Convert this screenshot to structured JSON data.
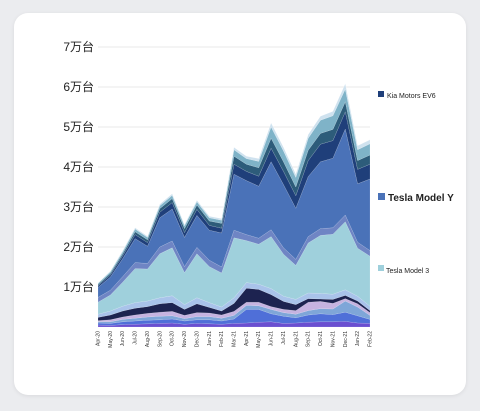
{
  "chart_data": {
    "type": "area",
    "stacked": true,
    "ylim": [
      0,
      70000
    ],
    "y_ticks": [
      {
        "value": 10000,
        "label": "1万台"
      },
      {
        "value": 20000,
        "label": "2万台"
      },
      {
        "value": 30000,
        "label": "3万台"
      },
      {
        "value": 40000,
        "label": "4万台"
      },
      {
        "value": 50000,
        "label": "5万台"
      },
      {
        "value": 60000,
        "label": "6万台"
      },
      {
        "value": 70000,
        "label": "7万台"
      }
    ],
    "categories": [
      "Apr-20",
      "May-20",
      "Jun-20",
      "Jul-20",
      "Aug-20",
      "Sep-20",
      "Oct-20",
      "Nov-20",
      "Dec-20",
      "Jan-21",
      "Feb-21",
      "Mar-21",
      "Apr-21",
      "May-21",
      "Jun-21",
      "Jul-21",
      "Aug-21",
      "Sep-21",
      "Oct-21",
      "Nov-21",
      "Dec-21",
      "Jan-22",
      "Feb-22"
    ],
    "x_tick_labels": [
      "Apr-20",
      "May-20",
      "Jun-20",
      "Jul-20",
      "Aug-20",
      "Sep-20",
      "Oct-20",
      "Nov-20",
      "Dec-20",
      "Jan-21",
      "Feb-21",
      "Mar-21",
      "Apr-21",
      "May-21",
      "Jun-21",
      "Jul-21",
      "Aug-21",
      "Sep-21",
      "Oct-21",
      "Nov-21",
      "Dec-21",
      "Jan-22",
      "Feb-22"
    ],
    "legend": [
      {
        "label": "Kia Motors EV6",
        "color": "#1f3f7a",
        "size": "small"
      },
      {
        "label": "Tesla Model Y",
        "color": "#4a72b8",
        "size": "big"
      },
      {
        "label": "Tesla Model 3",
        "color": "#9fd0dc",
        "size": "small"
      }
    ],
    "legend_position": "right",
    "series": [
      {
        "color": "#6a4fd0",
        "values": [
          500,
          400,
          600,
          700,
          800,
          900,
          1000,
          700,
          900,
          800,
          700,
          900,
          1000,
          1200,
          1300,
          900,
          1000,
          1200,
          1300,
          1300,
          1400,
          1000,
          900
        ]
      },
      {
        "color": "#4f6fd8",
        "values": [
          500,
          500,
          700,
          800,
          900,
          900,
          1000,
          800,
          900,
          1000,
          800,
          1100,
          3400,
          3200,
          2000,
          1800,
          1300,
          1800,
          2000,
          1800,
          2300,
          1800,
          1000
        ]
      },
      {
        "color": "#7fa6d8",
        "values": [
          300,
          400,
          600,
          700,
          800,
          900,
          800,
          600,
          800,
          800,
          700,
          900,
          1000,
          900,
          1100,
          900,
          900,
          1100,
          1300,
          1400,
          2800,
          2200,
          1000
        ]
      },
      {
        "color": "#c6b3e0",
        "values": [
          300,
          500,
          600,
          800,
          900,
          1000,
          1100,
          800,
          1000,
          900,
          800,
          1000,
          800,
          900,
          700,
          800,
          900,
          2100,
          1800,
          1400,
          600,
          800,
          700
        ]
      },
      {
        "color": "#1d2350",
        "values": [
          800,
          1200,
          1500,
          1700,
          1700,
          2100,
          2200,
          1500,
          2200,
          1400,
          1000,
          2000,
          3500,
          3200,
          3000,
          2000,
          1500,
          900,
          600,
          1000,
          800,
          700,
          500
        ]
      },
      {
        "color": "#a9c3ea",
        "values": [
          800,
          1000,
          1200,
          1400,
          1400,
          1500,
          1700,
          1200,
          1500,
          1200,
          1000,
          1400,
          1400,
          1300,
          1500,
          1300,
          1300,
          1400,
          1400,
          1300,
          1400,
          1200,
          1100
        ]
      },
      {
        "color": "#9fd0dc",
        "values": [
          3000,
          4000,
          6000,
          8500,
          8000,
          11000,
          12000,
          8000,
          11000,
          9000,
          8500,
          15000,
          10500,
          10000,
          13000,
          10500,
          8500,
          12500,
          14500,
          15000,
          17000,
          12000,
          12500
        ]
      },
      {
        "color": "#6f85c4",
        "values": [
          1200,
          1200,
          1400,
          1500,
          1400,
          1700,
          1700,
          1500,
          1600,
          1600,
          1500,
          1900,
          1500,
          1500,
          1700,
          1600,
          1500,
          1600,
          1700,
          1600,
          1700,
          1500,
          1400
        ]
      },
      {
        "color": "#4a72b8",
        "values": [
          2500,
          3300,
          4500,
          6000,
          4300,
          7300,
          8000,
          7300,
          8000,
          7500,
          8500,
          14000,
          13500,
          13000,
          17000,
          15800,
          12800,
          15000,
          16700,
          17400,
          21500,
          14600,
          17900
        ]
      },
      {
        "color": "#1f3f7a",
        "values": [
          400,
          500,
          700,
          1000,
          900,
          1400,
          1600,
          1200,
          1500,
          1200,
          1200,
          2500,
          2300,
          2500,
          3400,
          3300,
          3100,
          4000,
          4400,
          4400,
          4300,
          3600,
          3700
        ]
      },
      {
        "color": "#2d5c7a",
        "values": [
          300,
          400,
          500,
          700,
          700,
          900,
          1000,
          1000,
          1100,
          1100,
          1200,
          2000,
          1800,
          2100,
          2500,
          2400,
          2200,
          2600,
          2700,
          2800,
          2500,
          2200,
          2300
        ]
      },
      {
        "color": "#7fb3c8",
        "values": [
          300,
          400,
          500,
          700,
          600,
          700,
          800,
          700,
          800,
          800,
          800,
          1600,
          1400,
          1600,
          2800,
          2700,
          2400,
          3000,
          3300,
          3400,
          3200,
          2700,
          2800
        ]
      },
      {
        "color": "#cfe2ef",
        "values": [
          100,
          200,
          300,
          300,
          300,
          400,
          400,
          300,
          400,
          400,
          400,
          600,
          600,
          700,
          1000,
          900,
          800,
          900,
          1000,
          1100,
          1300,
          1000,
          1000
        ]
      }
    ]
  }
}
